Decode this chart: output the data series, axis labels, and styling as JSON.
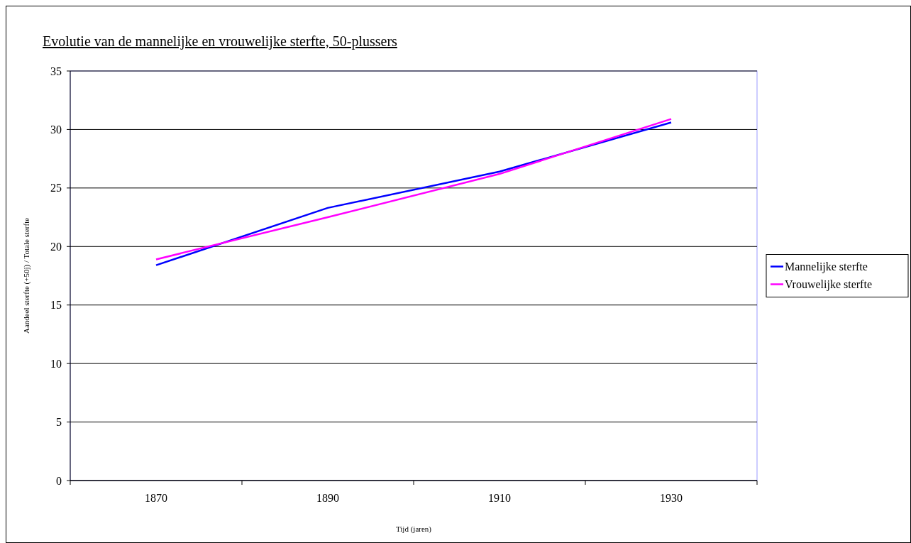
{
  "chart_data": {
    "type": "line",
    "title": "Evolutie van de mannelijke en vrouwelijke sterfte, 50-plussers",
    "xlabel": "Tijd (jaren)",
    "ylabel": "Aandeel sterfte (+50j) / Totale sterfte",
    "categories": [
      "1870",
      "1890",
      "1910",
      "1930"
    ],
    "series": [
      {
        "name": "Mannelijke sterfte",
        "color": "#0000ff",
        "values": [
          18.4,
          23.3,
          26.4,
          30.6
        ]
      },
      {
        "name": "Vrouwelijke sterfte",
        "color": "#ff00ff",
        "values": [
          18.9,
          22.5,
          26.2,
          30.9
        ]
      }
    ],
    "ylim": [
      0,
      35
    ],
    "yticks": [
      0,
      5,
      10,
      15,
      20,
      25,
      30,
      35
    ],
    "grid": "y",
    "legend": "right",
    "marker": "none",
    "line_style": "solid"
  }
}
